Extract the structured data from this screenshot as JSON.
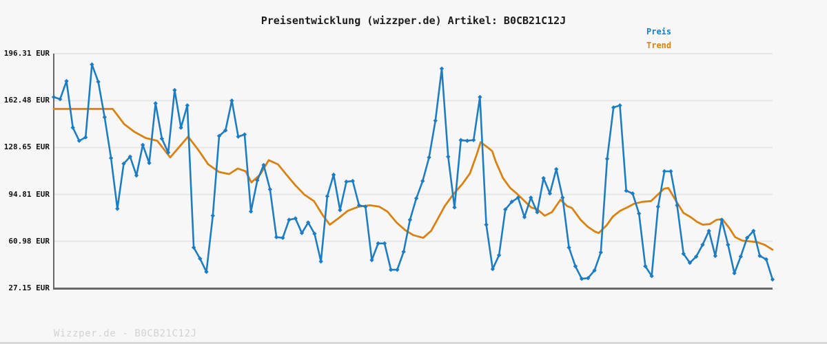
{
  "header": {
    "title": "Preisentwicklung (wizzper.de) Artikel: B0CB21C12J"
  },
  "legend": {
    "items": [
      {
        "label": "Preis",
        "color": "#1d7cc2"
      },
      {
        "label": "Trend",
        "color": "#d9820f"
      }
    ]
  },
  "watermark": {
    "text": "Wizzper.de - B0CB21C12J"
  },
  "colors": {
    "background": "#f7f7f7",
    "grid": "#e6e6e6",
    "axis": "#686868",
    "price": "#1d7cc2",
    "trend": "#d9820f"
  },
  "chart_data": {
    "type": "line",
    "title": "Preisentwicklung (wizzper.de) Artikel: B0CB21C12J",
    "xlabel": "",
    "ylabel": "",
    "x_tick_labels": [],
    "grid": "horizontal",
    "legend_position": "top-right",
    "y_axis": {
      "unit": "EUR",
      "range": [
        27.15,
        196.31
      ],
      "ticks": [
        {
          "value": 196.31,
          "label": "196.31 EUR"
        },
        {
          "value": 162.48,
          "label": "162.48 EUR"
        },
        {
          "value": 128.65,
          "label": "128.65 EUR"
        },
        {
          "value": 94.81,
          "label": "94.81 EUR"
        },
        {
          "value": 60.98,
          "label": "60.98 EUR"
        },
        {
          "value": 27.15,
          "label": "27.15 EUR"
        }
      ]
    },
    "series": [
      {
        "name": "Preis",
        "color": "#1d7cc2",
        "marker": "diamond",
        "values": [
          165,
          163.5,
          176.5,
          143,
          133.5,
          136,
          188.5,
          176,
          150.5,
          121,
          84.5,
          117,
          122,
          108.5,
          130.5,
          117.5,
          160.5,
          135,
          125,
          170,
          143,
          159,
          56.5,
          48.5,
          39,
          79.5,
          137,
          141,
          162.5,
          136.5,
          138,
          82.5,
          105,
          116,
          98.5,
          64,
          63.5,
          76.5,
          77.5,
          67,
          74.5,
          66.5,
          46.5,
          93.5,
          109,
          83.5,
          104,
          104.5,
          87,
          86,
          47.5,
          59.5,
          59.5,
          40.5,
          40.5,
          53.5,
          76.5,
          92,
          104.5,
          121.5,
          148,
          185.5,
          122,
          85.5,
          134,
          133.5,
          134,
          165,
          73,
          41,
          51,
          84,
          89.5,
          92.5,
          78.5,
          92.5,
          82,
          106.5,
          95.5,
          113,
          92.5,
          56.5,
          43,
          34,
          34.5,
          40,
          53,
          120.5,
          157.5,
          159,
          97.5,
          95.5,
          81,
          43,
          36,
          86,
          111.5,
          111.5,
          87,
          52,
          45.5,
          50,
          58.5,
          68.5,
          50.5,
          76.5,
          58.5,
          38,
          50,
          63.5,
          68.5,
          50.5,
          48,
          33.5
        ]
      },
      {
        "name": "Trend",
        "color": "#d9820f",
        "marker": "none",
        "points": [
          [
            0,
            156.5
          ],
          [
            0.082,
            156.5
          ],
          [
            0.098,
            145.5
          ],
          [
            0.112,
            140
          ],
          [
            0.128,
            135.5
          ],
          [
            0.144,
            133.5
          ],
          [
            0.162,
            121.5
          ],
          [
            0.187,
            136.5
          ],
          [
            0.201,
            127
          ],
          [
            0.215,
            116.5
          ],
          [
            0.23,
            111
          ],
          [
            0.244,
            109.5
          ],
          [
            0.256,
            113.5
          ],
          [
            0.267,
            111.5
          ],
          [
            0.275,
            103.5
          ],
          [
            0.287,
            109
          ],
          [
            0.299,
            119.5
          ],
          [
            0.312,
            116.5
          ],
          [
            0.323,
            109.5
          ],
          [
            0.336,
            101.5
          ],
          [
            0.349,
            94.5
          ],
          [
            0.362,
            90
          ],
          [
            0.374,
            80
          ],
          [
            0.384,
            73
          ],
          [
            0.397,
            78
          ],
          [
            0.409,
            83
          ],
          [
            0.424,
            86
          ],
          [
            0.44,
            87
          ],
          [
            0.453,
            86
          ],
          [
            0.464,
            82.5
          ],
          [
            0.477,
            74.5
          ],
          [
            0.489,
            69
          ],
          [
            0.5,
            65.5
          ],
          [
            0.514,
            63.5
          ],
          [
            0.525,
            68.5
          ],
          [
            0.533,
            76
          ],
          [
            0.544,
            86.5
          ],
          [
            0.556,
            95
          ],
          [
            0.568,
            102
          ],
          [
            0.579,
            110
          ],
          [
            0.588,
            123
          ],
          [
            0.594,
            132.5
          ],
          [
            0.603,
            129
          ],
          [
            0.61,
            126
          ],
          [
            0.615,
            118.5
          ],
          [
            0.625,
            106.5
          ],
          [
            0.635,
            99.5
          ],
          [
            0.644,
            95.5
          ],
          [
            0.654,
            90.5
          ],
          [
            0.664,
            85.5
          ],
          [
            0.673,
            84
          ],
          [
            0.683,
            79.5
          ],
          [
            0.693,
            82
          ],
          [
            0.705,
            91
          ],
          [
            0.714,
            86.5
          ],
          [
            0.721,
            85
          ],
          [
            0.733,
            76.5
          ],
          [
            0.743,
            71.5
          ],
          [
            0.753,
            68
          ],
          [
            0.758,
            67
          ],
          [
            0.769,
            72.5
          ],
          [
            0.778,
            79
          ],
          [
            0.788,
            83
          ],
          [
            0.798,
            85.5
          ],
          [
            0.807,
            88
          ],
          [
            0.819,
            89.5
          ],
          [
            0.831,
            90
          ],
          [
            0.841,
            95
          ],
          [
            0.849,
            99
          ],
          [
            0.855,
            99.5
          ],
          [
            0.867,
            89
          ],
          [
            0.876,
            81.5
          ],
          [
            0.886,
            78.5
          ],
          [
            0.895,
            75
          ],
          [
            0.903,
            73
          ],
          [
            0.913,
            73.5
          ],
          [
            0.922,
            76.5
          ],
          [
            0.93,
            77
          ],
          [
            0.94,
            70.5
          ],
          [
            0.948,
            64
          ],
          [
            0.958,
            61.5
          ],
          [
            0.968,
            61
          ],
          [
            0.978,
            60.5
          ],
          [
            0.989,
            58.5
          ],
          [
            1,
            55
          ]
        ]
      }
    ]
  }
}
